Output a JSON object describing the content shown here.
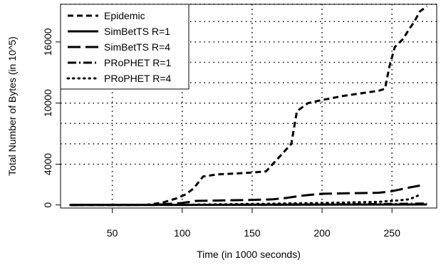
{
  "chart_data": {
    "type": "line",
    "title": "",
    "xlabel": "Time (in 1000 seconds)",
    "ylabel": "Total Number of Bytes (in 10^5)",
    "xlim": [
      13,
      282
    ],
    "ylim": [
      -300,
      19700
    ],
    "x_ticks": [
      50,
      100,
      150,
      200,
      250
    ],
    "y_ticks": [
      0,
      4000,
      10000,
      16000
    ],
    "y_tick_labels": [
      "0",
      "4000",
      "10000",
      "16000"
    ],
    "grid": true,
    "grid_x": [
      50,
      100,
      150,
      200,
      250
    ],
    "grid_y": [
      4000,
      6000,
      8000,
      10000,
      12000,
      14000,
      16000,
      18000,
      19700
    ],
    "legend_position": "top-left",
    "series": [
      {
        "name": "Epidemic",
        "dash": "8,5",
        "x": [
          20,
          60,
          75,
          85,
          95,
          102,
          108,
          115,
          125,
          140,
          152,
          160,
          170,
          178,
          182,
          187,
          190,
          200,
          215,
          230,
          240,
          245,
          248,
          252,
          258,
          262,
          266,
          270,
          275
        ],
        "y": [
          0,
          0,
          20,
          200,
          600,
          1000,
          1600,
          2800,
          3000,
          3100,
          3200,
          3300,
          4800,
          6000,
          9200,
          9700,
          10000,
          10300,
          10700,
          11000,
          11200,
          11400,
          13500,
          15500,
          16300,
          17200,
          18000,
          19000,
          19500
        ]
      },
      {
        "name": "SimBetTS R=1",
        "dash": "",
        "x": [
          20,
          100,
          150,
          200,
          250,
          275
        ],
        "y": [
          0,
          10,
          20,
          30,
          40,
          50
        ]
      },
      {
        "name": "SimBetTS R=4",
        "dash": "18,7",
        "x": [
          20,
          80,
          100,
          110,
          150,
          165,
          175,
          185,
          200,
          220,
          240,
          248,
          255,
          262,
          270
        ],
        "y": [
          0,
          10,
          200,
          400,
          500,
          550,
          700,
          900,
          1100,
          1150,
          1200,
          1300,
          1500,
          1700,
          1900
        ]
      },
      {
        "name": "PRoPHET R=1",
        "dash": "12,4,2,4",
        "x": [
          20,
          100,
          150,
          200,
          250,
          275
        ],
        "y": [
          0,
          10,
          20,
          50,
          100,
          150
        ]
      },
      {
        "name": "PRoPHET R=4",
        "dash": "1.5,6",
        "x": [
          20,
          100,
          150,
          200,
          240,
          255,
          262,
          265,
          270
        ],
        "y": [
          0,
          20,
          100,
          200,
          300,
          450,
          550,
          700,
          1000
        ]
      }
    ]
  }
}
